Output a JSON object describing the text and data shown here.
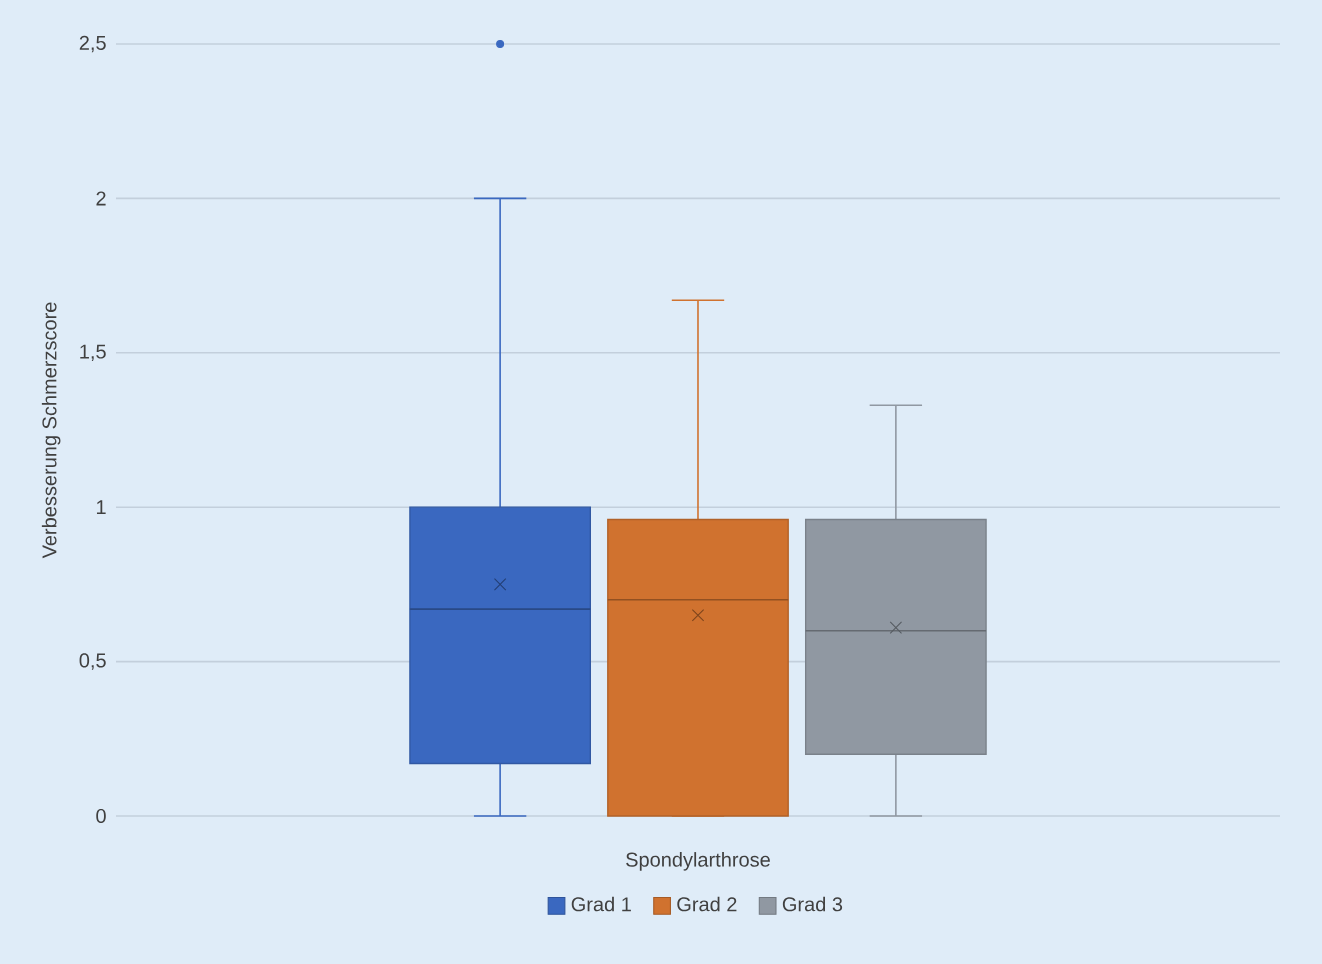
{
  "chart_data": {
    "type": "box",
    "ylabel": "Verbesserung Schmerzscore",
    "categories": [
      "Spondylarthrose"
    ],
    "series": [
      {
        "name": "Grad 1",
        "color": "#3a68c0",
        "boxes": [
          {
            "low": 0,
            "q1": 0.17,
            "median": 0.67,
            "q3": 1.0,
            "high": 2.0,
            "mean": 0.75,
            "outliers": [
              2.5
            ]
          }
        ]
      },
      {
        "name": "Grad 2",
        "color": "#d0722f",
        "boxes": [
          {
            "low": 0,
            "q1": 0,
            "median": 0.7,
            "q3": 0.96,
            "high": 1.67,
            "mean": 0.65
          }
        ]
      },
      {
        "name": "Grad 3",
        "color": "#9098a2",
        "boxes": [
          {
            "low": 0,
            "q1": 0.2,
            "median": 0.6,
            "q3": 0.96,
            "high": 1.33,
            "mean": 0.61
          }
        ]
      }
    ],
    "ylim": [
      0,
      2.5
    ],
    "yticks": [
      0,
      {
        "value": 0.5,
        "label": "0,5"
      },
      1,
      {
        "value": 1.5,
        "label": "1,5"
      },
      2,
      {
        "value": 2.5,
        "label": "2,5"
      }
    ],
    "grid": "y",
    "legend": "bottom"
  }
}
